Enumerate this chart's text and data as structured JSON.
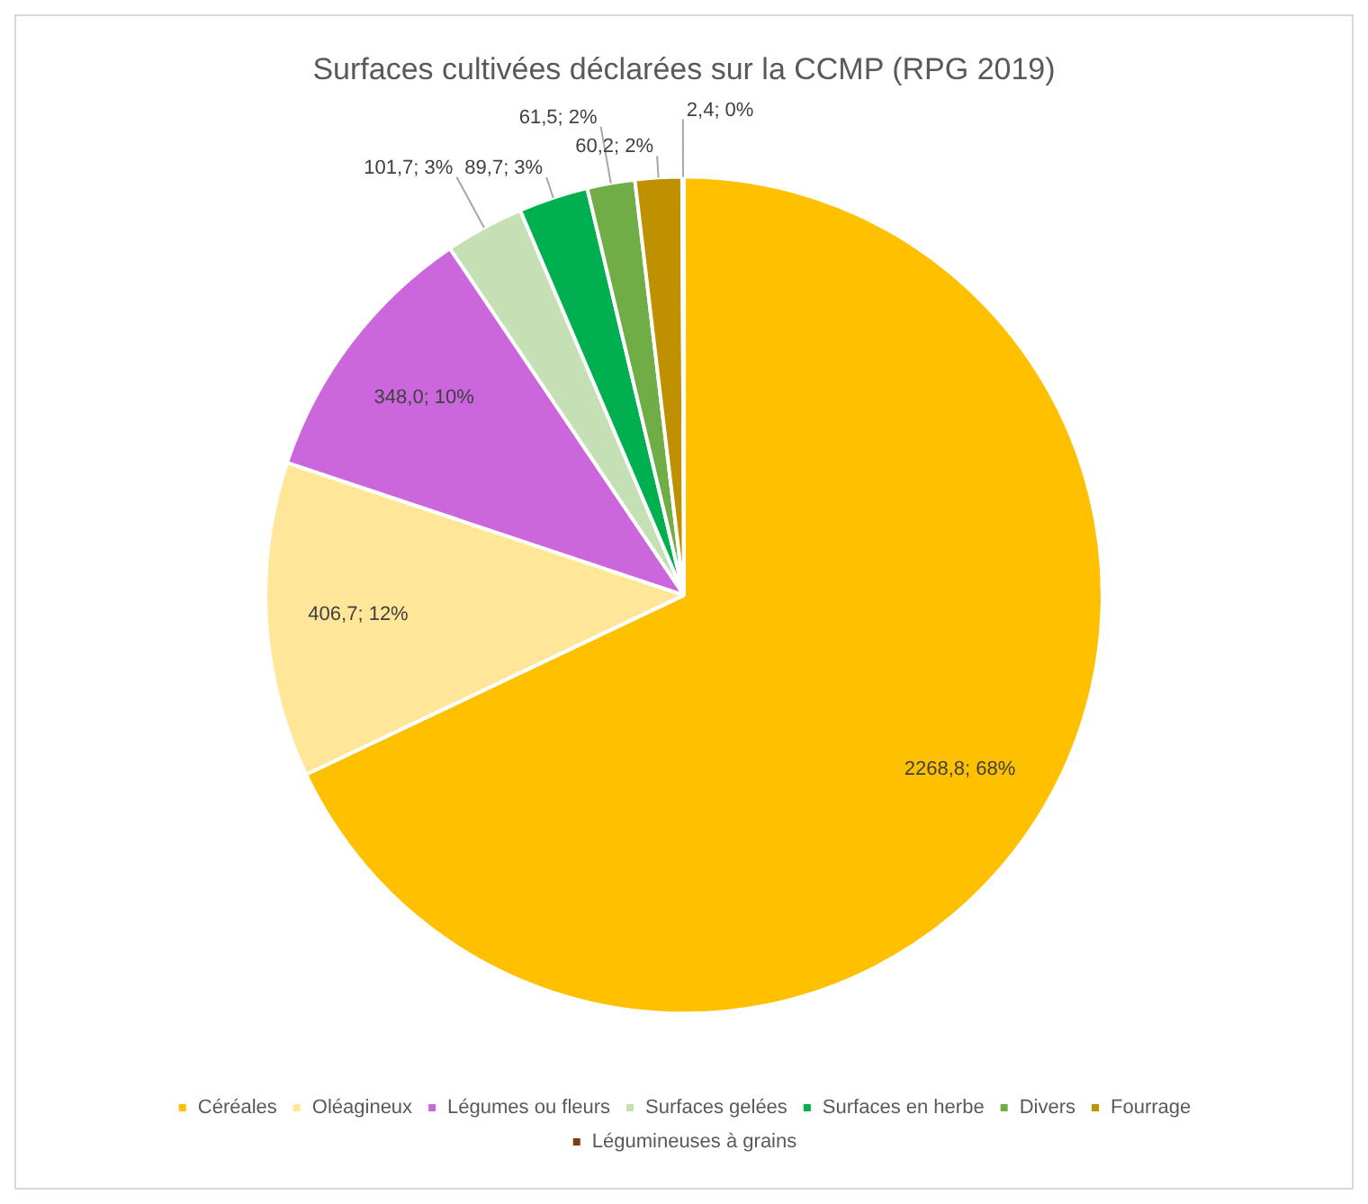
{
  "chart_data": {
    "type": "pie",
    "title": "Surfaces cultivées déclarées sur la CCMP (RPG 2019)",
    "categories": [
      "Céréales",
      "Oléagineux",
      "Légumes ou fleurs",
      "Surfaces gelées",
      "Surfaces en herbe",
      "Divers",
      "Fourrage",
      "Légumineuses à grains"
    ],
    "values": [
      2268.8,
      406.7,
      348.0,
      101.7,
      89.7,
      61.5,
      60.2,
      2.4
    ],
    "colors": [
      "#ffc000",
      "#ffe699",
      "#cc66dd",
      "#c5e0b4",
      "#00b050",
      "#70ad47",
      "#bf9000",
      "#843c0c"
    ],
    "value_labels": [
      "2268,8; 68%",
      "406,7; 12%",
      "348,0; 10%",
      "101,7; 3%",
      "89,7; 3%",
      "61,5; 2%",
      "60,2; 2%",
      "2,4; 0%"
    ],
    "legend": "bottom"
  }
}
